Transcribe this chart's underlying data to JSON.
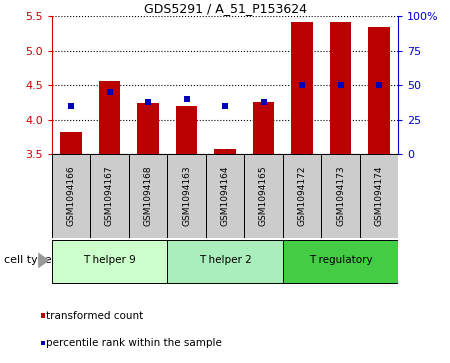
{
  "title": "GDS5291 / A_51_P153624",
  "samples": [
    "GSM1094166",
    "GSM1094167",
    "GSM1094168",
    "GSM1094163",
    "GSM1094164",
    "GSM1094165",
    "GSM1094172",
    "GSM1094173",
    "GSM1094174"
  ],
  "transformed_count": [
    3.82,
    4.56,
    4.24,
    4.2,
    3.58,
    4.26,
    5.42,
    5.42,
    5.34
  ],
  "percentile_rank": [
    35,
    45,
    38,
    40,
    35,
    38,
    50,
    50,
    50
  ],
  "ylim_left": [
    3.5,
    5.5
  ],
  "ylim_right": [
    0,
    100
  ],
  "yticks_left": [
    3.5,
    4.0,
    4.5,
    5.0,
    5.5
  ],
  "yticks_right": [
    0,
    25,
    50,
    75,
    100
  ],
  "ytick_labels_right": [
    "0",
    "25",
    "50",
    "75",
    "100%"
  ],
  "bar_color": "#bb0000",
  "dot_color": "#0000bb",
  "cell_groups": [
    {
      "label": "T helper 9",
      "indices": [
        0,
        1,
        2
      ],
      "color": "#ccffcc"
    },
    {
      "label": "T helper 2",
      "indices": [
        3,
        4,
        5
      ],
      "color": "#aaeebb"
    },
    {
      "label": "T regulatory",
      "indices": [
        6,
        7,
        8
      ],
      "color": "#44cc44"
    }
  ],
  "legend_items": [
    {
      "label": "transformed count",
      "color": "#bb0000"
    },
    {
      "label": "percentile rank within the sample",
      "color": "#0000bb"
    }
  ],
  "grid_color": "black",
  "grid_style": "dotted",
  "bar_width": 0.55,
  "background_color": "#ffffff",
  "sample_box_color": "#cccccc",
  "cell_type_label": "cell type"
}
